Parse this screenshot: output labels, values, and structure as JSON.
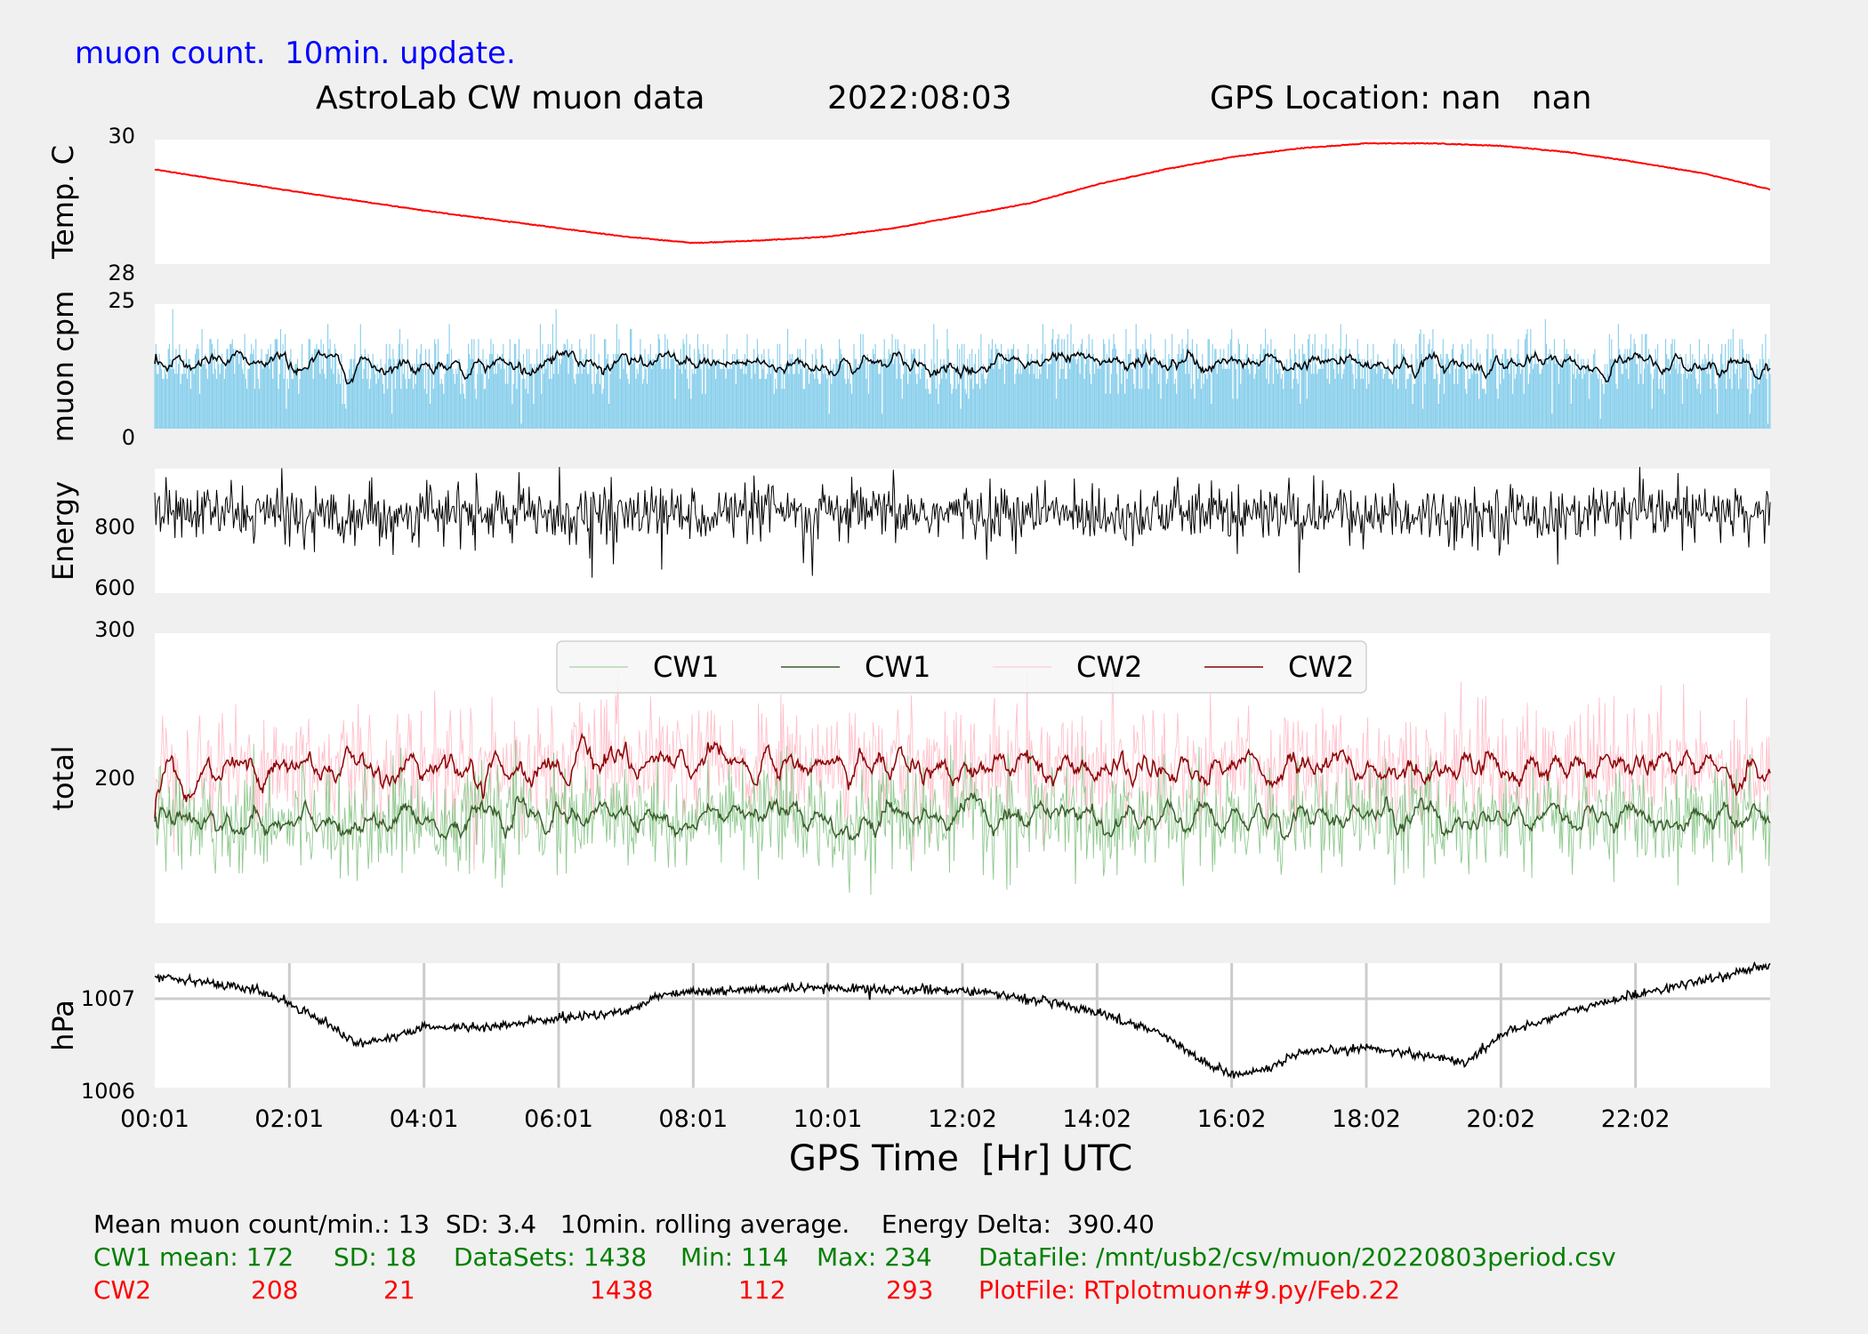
{
  "header": {
    "note": "muon count.  10min. update.",
    "title": "AstroLab CW muon data",
    "date": "2022:08:03",
    "gps": "GPS Location: nan   nan"
  },
  "x_axis": {
    "label": "GPS Time  [Hr] UTC",
    "ticks": [
      "00:01",
      "02:01",
      "04:01",
      "06:01",
      "08:01",
      "10:01",
      "12:02",
      "14:02",
      "16:02",
      "18:02",
      "20:02",
      "22:02"
    ]
  },
  "stats": {
    "line1": "Mean muon count/min.: 13  SD: 3.4   10min. rolling average.    Energy Delta:  390.40",
    "cw1": {
      "label": "CW1 mean: 172",
      "sd": "SD: 18",
      "datasets": "DataSets: 1438",
      "min": "Min: 114",
      "max": "Max: 234",
      "file": "DataFile: /mnt/usb2/csv/muon/20220803period.csv"
    },
    "cw2": {
      "label": "CW2",
      "mean": "208",
      "sd": "21",
      "datasets": "1438",
      "min": "112",
      "max": "293",
      "file": "PlotFile: RTplotmuon#9.py/Feb.22"
    }
  },
  "colors": {
    "background": "#f0f0f0",
    "temp": "#ff0000",
    "cpm_bars": "#87ceeb",
    "cpm_avg": "#000000",
    "energy": "#000000",
    "cw1_raw": "#8fc98f",
    "cw1_avg": "#3a5f2a",
    "cw2_raw": "#ffc0cb",
    "cw2_avg": "#8b0000",
    "pressure": "#000000"
  },
  "chart_data": [
    {
      "type": "line",
      "ylabel": "Temp. C",
      "ylim": [
        28,
        30
      ],
      "yticks": [
        "30",
        "28"
      ],
      "x_hours": [
        0,
        1,
        2,
        3,
        4,
        5,
        6,
        7,
        8,
        9,
        10,
        11,
        12,
        13,
        14,
        15,
        16,
        17,
        18,
        19,
        20,
        21,
        22,
        23,
        24
      ],
      "series": [
        {
          "values": [
            29.52,
            29.35,
            29.18,
            29.02,
            28.86,
            28.72,
            28.58,
            28.44,
            28.34,
            28.38,
            28.44,
            28.58,
            28.78,
            28.98,
            29.28,
            29.52,
            29.72,
            29.86,
            29.94,
            29.94,
            29.9,
            29.8,
            29.64,
            29.46,
            29.2
          ]
        }
      ]
    },
    {
      "type": "bar",
      "ylabel": "muon cpm",
      "ylim": [
        0,
        25
      ],
      "yticks": [
        "25",
        "0"
      ],
      "x_range_hours": [
        0,
        24
      ],
      "points": 1438,
      "mean": 13,
      "sd": 3.4,
      "rolling_average_min": 10
    },
    {
      "type": "line",
      "ylabel": "Energy",
      "ylim": [
        600,
        975
      ],
      "yticks": [
        "800",
        "600"
      ],
      "x_range_hours": [
        0,
        24
      ],
      "points": 1438,
      "mean": 840,
      "delta": 390.4
    },
    {
      "type": "line",
      "ylabel": "total",
      "ylim": [
        100,
        300
      ],
      "yticks": [
        "300",
        "200"
      ],
      "x_range_hours": [
        0,
        24
      ],
      "legend": [
        "CW1",
        "CW1",
        "CW2",
        "CW2"
      ],
      "legend_position": "top-center",
      "series": [
        {
          "name": "CW1",
          "kind": "raw",
          "mean": 172,
          "sd": 18,
          "min": 114,
          "max": 234,
          "points": 1438
        },
        {
          "name": "CW1",
          "kind": "rolling",
          "mean": 172
        },
        {
          "name": "CW2",
          "kind": "raw",
          "mean": 208,
          "sd": 21,
          "min": 112,
          "max": 293,
          "points": 1438
        },
        {
          "name": "CW2",
          "kind": "rolling",
          "mean": 208
        }
      ]
    },
    {
      "type": "line",
      "ylabel": "hPa",
      "ylim": [
        1006,
        1007.4
      ],
      "yticks": [
        "1007",
        "1006"
      ],
      "grid": true,
      "x_hours": [
        0,
        0.5,
        1,
        1.5,
        2,
        2.5,
        3,
        3.5,
        4,
        5,
        6,
        7,
        7.5,
        8,
        9,
        10,
        11,
        12,
        13,
        14,
        15,
        15.5,
        16,
        16.5,
        17,
        18,
        19,
        19.5,
        20,
        21,
        22,
        23,
        24
      ],
      "series": [
        {
          "values": [
            1007.25,
            1007.22,
            1007.15,
            1007.1,
            1006.95,
            1006.75,
            1006.5,
            1006.55,
            1006.68,
            1006.68,
            1006.78,
            1006.85,
            1007.05,
            1007.08,
            1007.1,
            1007.12,
            1007.1,
            1007.1,
            1007.0,
            1006.85,
            1006.6,
            1006.32,
            1006.15,
            1006.2,
            1006.38,
            1006.45,
            1006.35,
            1006.28,
            1006.6,
            1006.85,
            1007.05,
            1007.2,
            1007.38
          ]
        }
      ]
    }
  ]
}
